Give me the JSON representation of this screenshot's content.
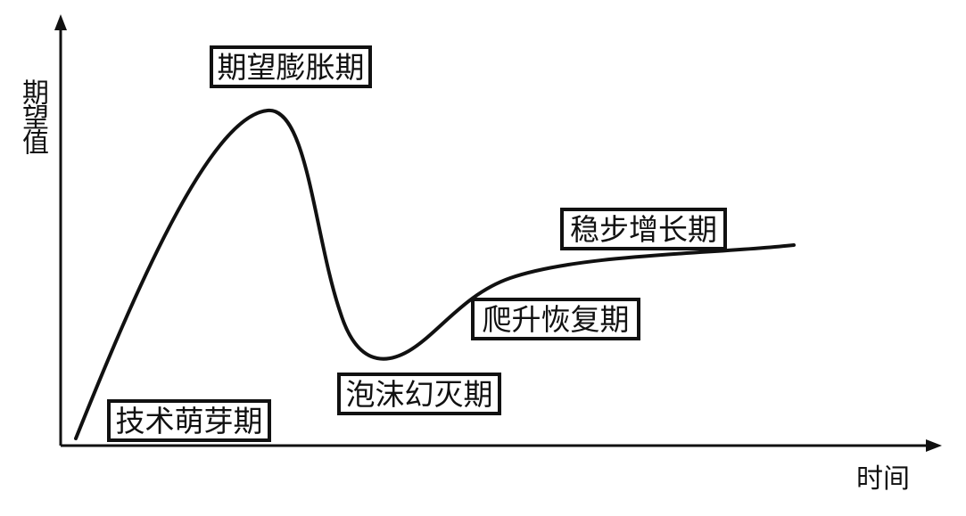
{
  "axes": {
    "y_label": "期望值",
    "x_label": "时间"
  },
  "phases": [
    {
      "id": "trigger",
      "label": "技术萌芽期"
    },
    {
      "id": "peak",
      "label": "期望膨胀期"
    },
    {
      "id": "trough",
      "label": "泡沫幻灭期"
    },
    {
      "id": "slope",
      "label": "爬升恢复期"
    },
    {
      "id": "plateau",
      "label": "稳步增长期"
    }
  ]
}
